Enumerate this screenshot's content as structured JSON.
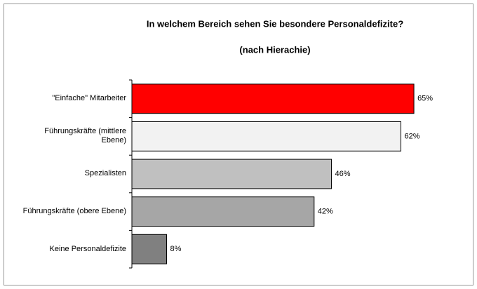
{
  "chart_data": {
    "type": "bar",
    "orientation": "horizontal",
    "title": "In welchem Bereich sehen Sie besondere Personaldefizite?",
    "subtitle": "(nach Hierachie)",
    "categories": [
      "\"Einfache\" Mitarbeiter",
      "Führungskräfte (mittlere Ebene)",
      "Spezialisten",
      "Führungskräfte (obere Ebene)",
      "Keine Personaldefizite"
    ],
    "values": [
      65,
      62,
      46,
      42,
      8
    ],
    "value_labels": [
      "65%",
      "62%",
      "46%",
      "42%",
      "8%"
    ],
    "colors": [
      "#ff0000",
      "#f2f2f2",
      "#c0c0c0",
      "#a6a6a6",
      "#808080"
    ],
    "xlim": [
      0,
      70
    ]
  }
}
